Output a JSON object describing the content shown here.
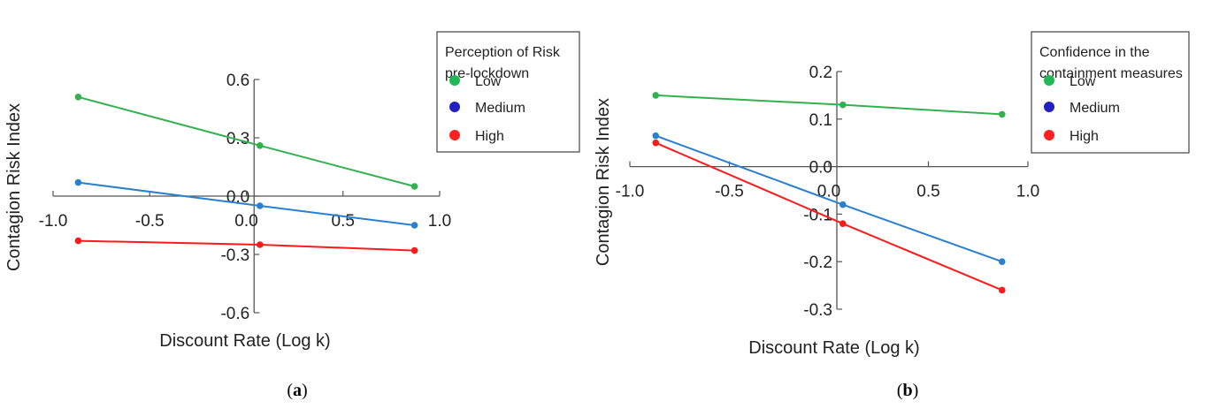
{
  "chart_data": [
    {
      "type": "line",
      "panel_label": "a",
      "xlabel": "Discount Rate (Log k)",
      "ylabel": "Contagion Risk Index",
      "xlim": [
        -1.0,
        1.0
      ],
      "ylim": [
        -0.6,
        0.6
      ],
      "x_ticks": [
        "-1.0",
        "-0.5",
        "0.0",
        "0.5",
        "1.0"
      ],
      "y_ticks": [
        "0.6",
        "0.3",
        "0.0",
        "-0.3",
        "-0.6"
      ],
      "legend_title": [
        "Perception of Risk",
        "pre-lockdown"
      ],
      "legend_placement": "top-right",
      "legend": [
        {
          "name": "Low",
          "color": "#1db954"
        },
        {
          "name": "Medium",
          "color": "#2020c0"
        },
        {
          "name": "High",
          "color": "#ff2020"
        }
      ],
      "series": [
        {
          "name": "Low",
          "color": "#33b14f",
          "x": [
            -0.87,
            0.07,
            0.87
          ],
          "y": [
            0.51,
            0.26,
            0.05
          ]
        },
        {
          "name": "Medium",
          "color": "#2a7fd0",
          "x": [
            -0.87,
            0.07,
            0.87
          ],
          "y": [
            0.07,
            -0.05,
            -0.15
          ]
        },
        {
          "name": "High",
          "color": "#ff1a1a",
          "x": [
            -0.87,
            0.07,
            0.87
          ],
          "y": [
            -0.23,
            -0.25,
            -0.28
          ]
        }
      ]
    },
    {
      "type": "line",
      "panel_label": "b",
      "xlabel": "Discount Rate (Log k)",
      "ylabel": "Contagion Risk Index",
      "xlim": [
        -1.0,
        1.0
      ],
      "ylim": [
        -0.3,
        0.2
      ],
      "x_ticks": [
        "-1.0",
        "-0.5",
        "0.0",
        "0.5",
        "1.0"
      ],
      "y_ticks": [
        "0.2",
        "0.1",
        "0.0",
        "-0.1",
        "-0.2",
        "-0.3"
      ],
      "legend_title": [
        "Confidence in the",
        "containment measures"
      ],
      "legend_placement": "top-right",
      "legend": [
        {
          "name": "Low",
          "color": "#1db954"
        },
        {
          "name": "Medium",
          "color": "#2020c0"
        },
        {
          "name": "High",
          "color": "#ff2020"
        }
      ],
      "series": [
        {
          "name": "Low",
          "color": "#33b14f",
          "x": [
            -0.87,
            0.07,
            0.87
          ],
          "y": [
            0.15,
            0.13,
            0.11
          ]
        },
        {
          "name": "Medium",
          "color": "#2a7fd0",
          "x": [
            -0.87,
            0.07,
            0.87
          ],
          "y": [
            0.065,
            -0.08,
            -0.2
          ]
        },
        {
          "name": "High",
          "color": "#ff1a1a",
          "x": [
            -0.87,
            0.07,
            0.87
          ],
          "y": [
            0.05,
            -0.12,
            -0.26
          ]
        }
      ]
    }
  ]
}
